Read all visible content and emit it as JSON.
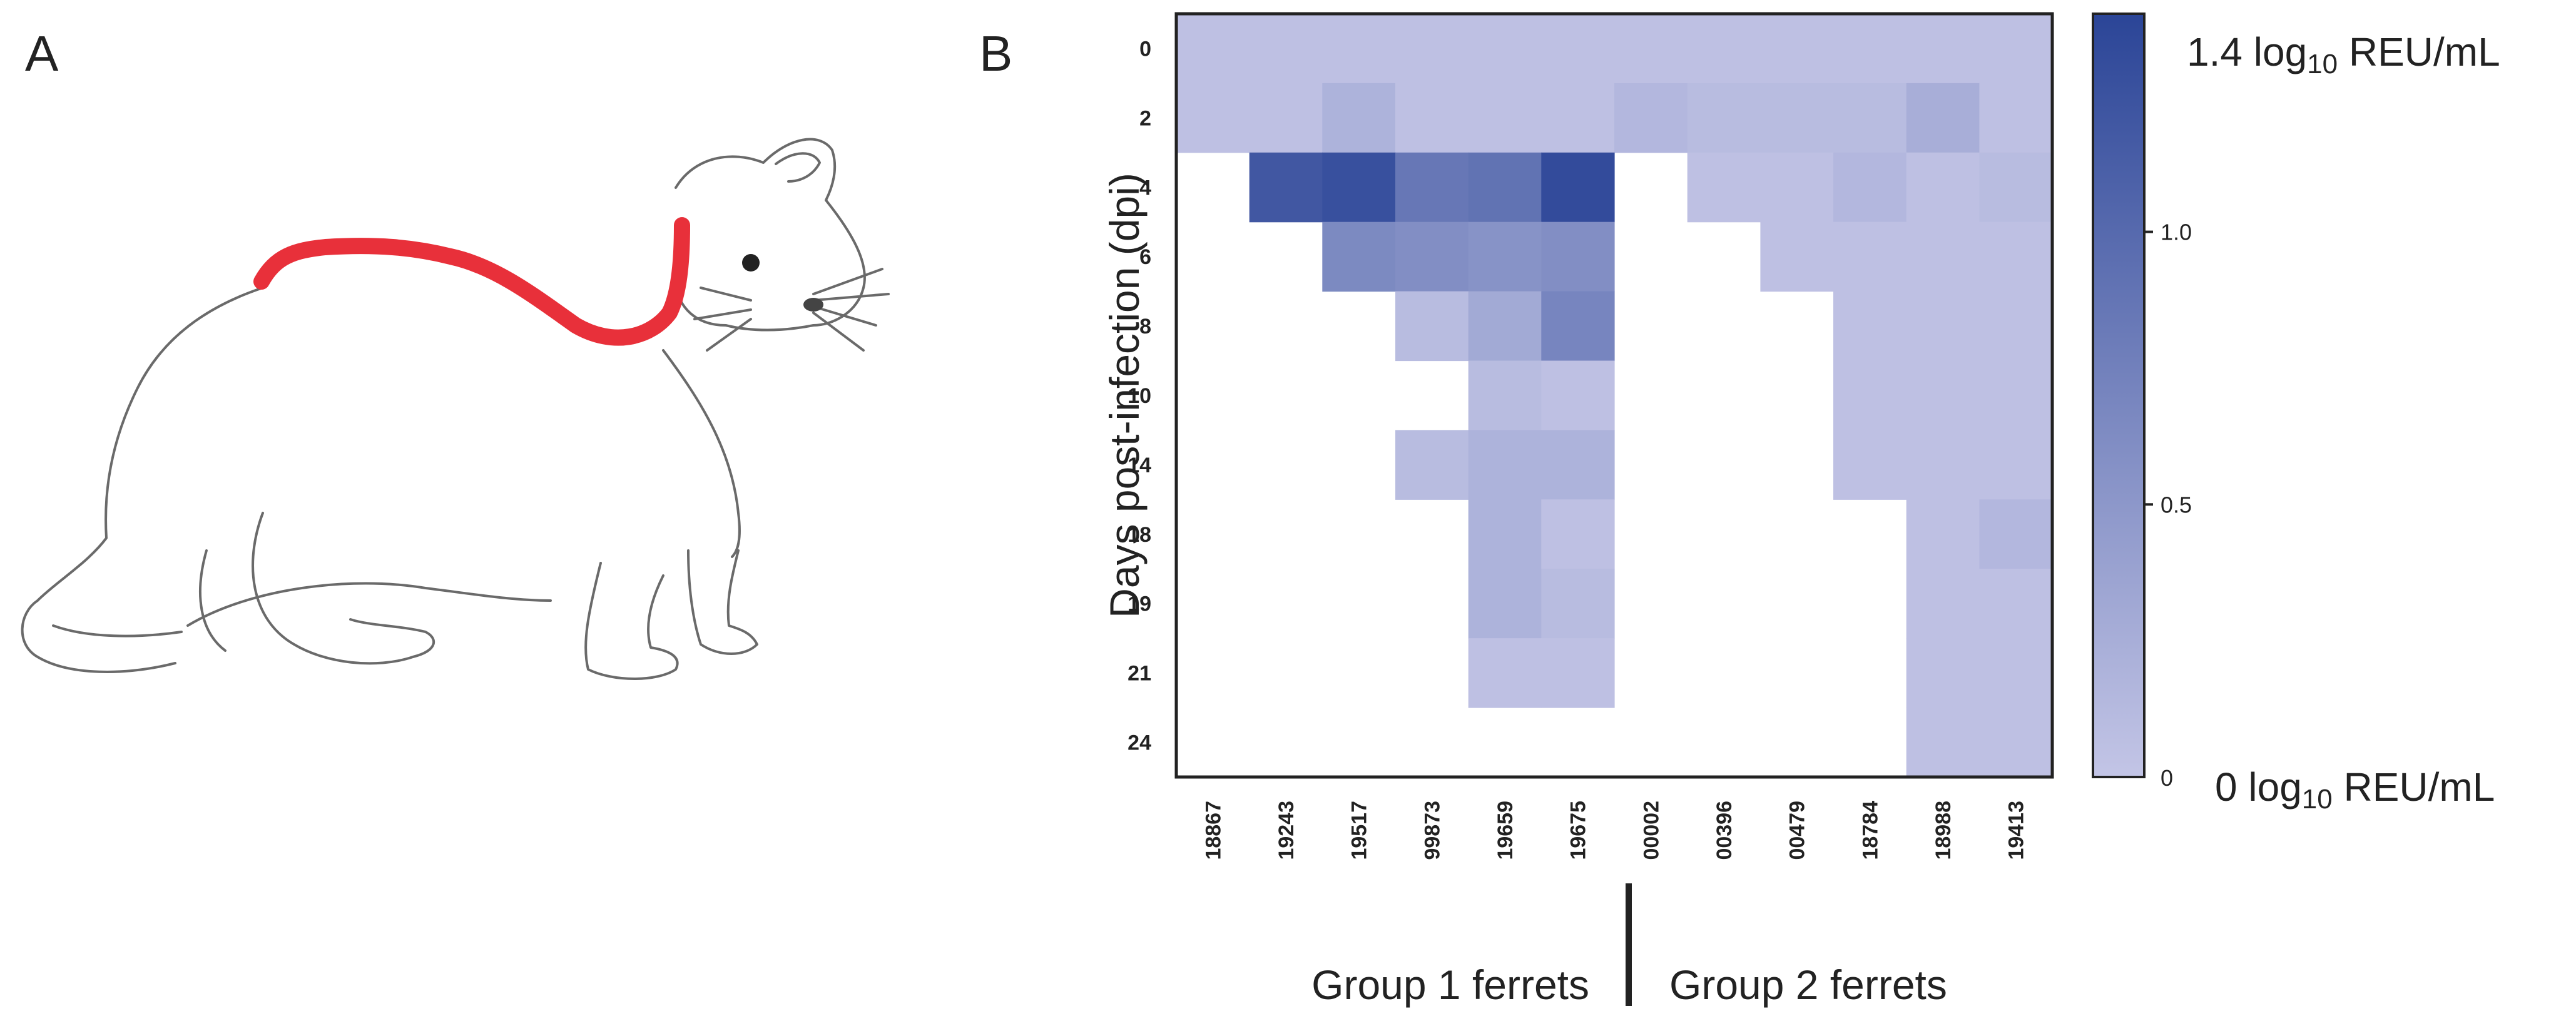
{
  "panels": {
    "a": "A",
    "b": "B"
  },
  "chart_data": {
    "type": "heatmap",
    "title": "",
    "ylabel": "Days post-infection (dpi)",
    "xlabel": "",
    "rows": [
      "0",
      "2",
      "4",
      "6",
      "8",
      "10",
      "14",
      "18",
      "19",
      "21",
      "24"
    ],
    "columns": [
      "18867",
      "19243",
      "19517",
      "99873",
      "19659",
      "19675",
      "00002",
      "00396",
      "00479",
      "18784",
      "18988",
      "19413"
    ],
    "groups": [
      {
        "name": "Group 1 ferrets",
        "columns": [
          "18867",
          "19243",
          "19517",
          "99873",
          "19659",
          "19675"
        ]
      },
      {
        "name": "Group 2 ferrets",
        "columns": [
          "00002",
          "00396",
          "00479",
          "18784",
          "18988",
          "19413"
        ]
      }
    ],
    "values_unit": "log10 REU/mL",
    "values": [
      [
        0.05,
        0.05,
        0.05,
        0.05,
        0.05,
        0.05,
        0.05,
        0.05,
        0.05,
        0.05,
        0.05,
        0.05
      ],
      [
        0.05,
        0.05,
        0.2,
        0.05,
        0.05,
        0.05,
        0.15,
        0.1,
        0.1,
        0.1,
        0.25,
        0.05
      ],
      [
        null,
        1.2,
        1.28,
        0.85,
        0.9,
        1.33,
        null,
        0.05,
        0.05,
        0.15,
        0.05,
        0.1
      ],
      [
        null,
        null,
        0.65,
        0.6,
        0.55,
        0.6,
        null,
        null,
        0.05,
        0.05,
        0.05,
        0.05
      ],
      [
        null,
        null,
        null,
        0.1,
        0.3,
        0.7,
        null,
        null,
        null,
        0.05,
        0.05,
        0.05
      ],
      [
        null,
        null,
        null,
        null,
        0.1,
        0.05,
        null,
        null,
        null,
        0.05,
        0.05,
        0.05
      ],
      [
        null,
        null,
        null,
        0.1,
        0.2,
        0.2,
        null,
        null,
        null,
        0.05,
        0.05,
        0.05
      ],
      [
        null,
        null,
        null,
        null,
        0.2,
        0.05,
        null,
        null,
        null,
        null,
        0.05,
        0.15
      ],
      [
        null,
        null,
        null,
        null,
        0.2,
        0.1,
        null,
        null,
        null,
        null,
        0.05,
        0.05
      ],
      [
        null,
        null,
        null,
        null,
        0.05,
        0.05,
        null,
        null,
        null,
        null,
        0.05,
        0.05
      ],
      [
        null,
        null,
        null,
        null,
        null,
        null,
        null,
        null,
        null,
        null,
        0.05,
        0.05
      ]
    ],
    "colorbar": {
      "min": 0,
      "max": 1.4,
      "ticks": [
        {
          "value": 0,
          "label": "0"
        },
        {
          "value": 0.5,
          "label": "0.5"
        },
        {
          "value": 1.0,
          "label": "1.0"
        }
      ],
      "max_label_prefix": "1.4 log",
      "min_label_prefix": "0 log",
      "label_sub": "10",
      "label_suffix": " REU/mL",
      "color_low": "#c3c5e6",
      "color_high": "#2b4597"
    }
  },
  "colors": {
    "highlight_stroke": "#e8303a",
    "sketch": "#6a6a6a"
  }
}
